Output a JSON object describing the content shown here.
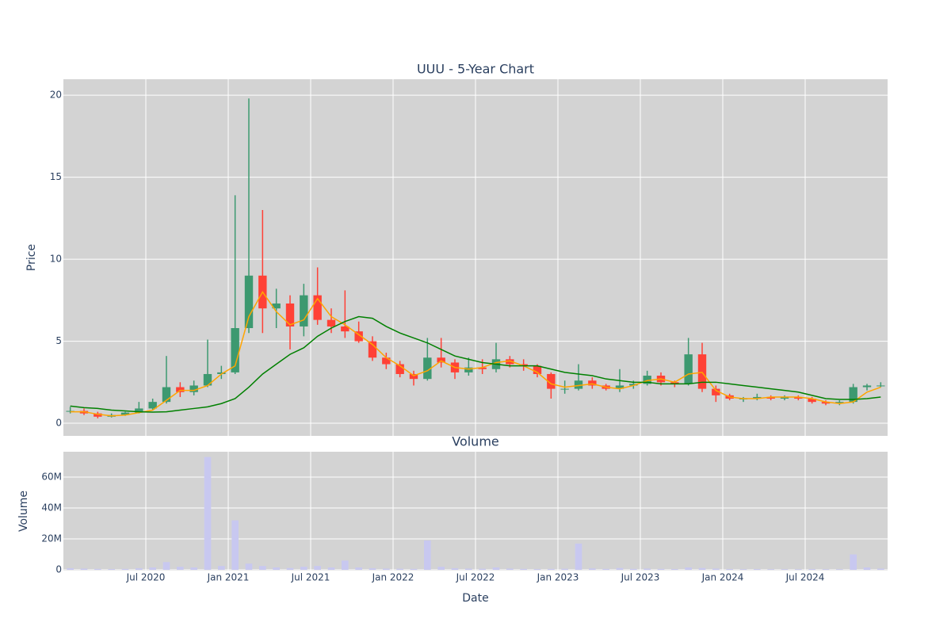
{
  "chart_data": [
    {
      "type": "candlestick",
      "title": "UUU - 5-Year Chart",
      "ylabel": "Price",
      "x": [
        "2020-01",
        "2020-02",
        "2020-03",
        "2020-04",
        "2020-05",
        "2020-06",
        "2020-07",
        "2020-08",
        "2020-09",
        "2020-10",
        "2020-11",
        "2020-12",
        "2021-01",
        "2021-02",
        "2021-03",
        "2021-04",
        "2021-05",
        "2021-06",
        "2021-07",
        "2021-08",
        "2021-09",
        "2021-10",
        "2021-11",
        "2021-12",
        "2022-01",
        "2022-02",
        "2022-03",
        "2022-04",
        "2022-05",
        "2022-06",
        "2022-07",
        "2022-08",
        "2022-09",
        "2022-10",
        "2022-11",
        "2022-12",
        "2023-01",
        "2023-02",
        "2023-03",
        "2023-04",
        "2023-05",
        "2023-06",
        "2023-07",
        "2023-08",
        "2023-09",
        "2023-10",
        "2023-11",
        "2023-12",
        "2024-01",
        "2024-02",
        "2024-03",
        "2024-04",
        "2024-05",
        "2024-06",
        "2024-07",
        "2024-08",
        "2024-09",
        "2024-10",
        "2024-11",
        "2024-12"
      ],
      "open": [
        0.7,
        0.75,
        0.6,
        0.4,
        0.5,
        0.65,
        0.9,
        1.3,
        2.2,
        1.9,
        2.3,
        3.0,
        3.1,
        5.8,
        9.0,
        7.0,
        7.3,
        5.9,
        7.8,
        6.3,
        5.9,
        5.6,
        5.0,
        4.0,
        3.6,
        3.0,
        2.7,
        4.0,
        3.7,
        3.1,
        3.4,
        3.3,
        3.9,
        3.6,
        3.5,
        3.0,
        2.1,
        2.1,
        2.6,
        2.3,
        2.1,
        2.3,
        2.4,
        2.9,
        2.5,
        2.4,
        4.2,
        2.1,
        1.7,
        1.5,
        1.5,
        1.6,
        1.5,
        1.6,
        1.5,
        1.3,
        1.2,
        1.3,
        2.2,
        2.3
      ],
      "high": [
        1.0,
        0.9,
        0.7,
        0.6,
        0.7,
        1.3,
        1.5,
        4.1,
        2.5,
        2.6,
        5.1,
        3.5,
        13.9,
        19.8,
        13.0,
        8.2,
        7.8,
        8.5,
        9.5,
        7.0,
        8.1,
        6.2,
        5.3,
        4.3,
        3.8,
        3.2,
        5.2,
        5.2,
        3.9,
        4.0,
        3.9,
        4.9,
        4.1,
        3.9,
        3.6,
        3.1,
        2.6,
        3.6,
        2.8,
        2.4,
        3.3,
        2.6,
        3.2,
        3.1,
        2.6,
        5.2,
        4.9,
        2.3,
        1.8,
        1.6,
        1.8,
        1.7,
        1.7,
        1.7,
        1.6,
        1.4,
        1.4,
        2.4,
        2.4,
        2.5
      ],
      "low": [
        0.6,
        0.5,
        0.3,
        0.35,
        0.45,
        0.6,
        0.8,
        1.2,
        1.6,
        1.7,
        2.2,
        2.7,
        3.0,
        5.5,
        5.5,
        5.8,
        4.5,
        5.3,
        6.0,
        5.5,
        5.2,
        4.9,
        3.8,
        3.3,
        2.8,
        2.3,
        2.6,
        3.4,
        2.7,
        2.9,
        3.0,
        3.1,
        3.4,
        3.2,
        2.8,
        1.5,
        1.8,
        2.0,
        2.1,
        2.0,
        1.9,
        2.1,
        2.3,
        2.3,
        2.2,
        2.3,
        1.9,
        1.3,
        1.4,
        1.3,
        1.4,
        1.4,
        1.4,
        1.4,
        1.2,
        1.1,
        1.1,
        1.2,
        2.0,
        2.2
      ],
      "close": [
        0.75,
        0.6,
        0.4,
        0.5,
        0.65,
        0.9,
        1.3,
        2.2,
        1.9,
        2.3,
        3.0,
        3.1,
        5.8,
        9.0,
        7.0,
        7.3,
        5.9,
        7.8,
        6.3,
        5.9,
        5.6,
        5.0,
        4.0,
        3.6,
        3.0,
        2.7,
        4.0,
        3.7,
        3.1,
        3.4,
        3.3,
        3.9,
        3.6,
        3.5,
        3.0,
        2.1,
        2.1,
        2.6,
        2.3,
        2.1,
        2.3,
        2.4,
        2.9,
        2.5,
        2.4,
        4.2,
        2.1,
        1.7,
        1.5,
        1.5,
        1.6,
        1.5,
        1.6,
        1.5,
        1.3,
        1.2,
        1.3,
        2.2,
        2.3,
        2.3
      ],
      "increasing_color": "#3d9970",
      "decreasing_color": "#ff4136",
      "overlays": [
        {
          "color": "orange",
          "values": [
            0.7,
            0.7,
            0.55,
            0.45,
            0.5,
            0.65,
            0.8,
            1.4,
            2.0,
            2.0,
            2.3,
            3.0,
            3.5,
            6.5,
            8.0,
            6.8,
            6.0,
            6.3,
            7.6,
            6.5,
            6.0,
            5.4,
            4.8,
            4.0,
            3.5,
            2.9,
            3.2,
            3.8,
            3.4,
            3.3,
            3.4,
            3.7,
            3.8,
            3.5,
            3.1,
            2.4,
            2.2,
            2.3,
            2.4,
            2.2,
            2.1,
            2.3,
            2.6,
            2.7,
            2.5,
            3.0,
            3.1,
            2.0,
            1.6,
            1.5,
            1.5,
            1.6,
            1.6,
            1.6,
            1.5,
            1.3,
            1.2,
            1.3,
            1.9,
            2.2
          ]
        },
        {
          "color": "green",
          "values": [
            1.05,
            0.95,
            0.9,
            0.8,
            0.75,
            0.7,
            0.68,
            0.7,
            0.8,
            0.9,
            1.0,
            1.2,
            1.5,
            2.2,
            3.0,
            3.6,
            4.2,
            4.6,
            5.3,
            5.8,
            6.2,
            6.5,
            6.4,
            5.9,
            5.5,
            5.2,
            4.9,
            4.5,
            4.1,
            3.9,
            3.7,
            3.6,
            3.5,
            3.5,
            3.5,
            3.3,
            3.1,
            3.0,
            2.9,
            2.7,
            2.6,
            2.5,
            2.5,
            2.4,
            2.4,
            2.4,
            2.5,
            2.5,
            2.4,
            2.3,
            2.2,
            2.1,
            2.0,
            1.9,
            1.7,
            1.5,
            1.45,
            1.45,
            1.5,
            1.6
          ]
        }
      ],
      "xlim": [
        "2020-01",
        "2025-01"
      ],
      "ylim": [
        -0.77,
        20.97
      ],
      "yticks": [
        0,
        5,
        10,
        15,
        20
      ],
      "grid": true
    },
    {
      "type": "bar",
      "title": "Volume",
      "ylabel": "Volume",
      "xlabel": "Date",
      "x": [
        "2020-01",
        "2020-02",
        "2020-03",
        "2020-04",
        "2020-05",
        "2020-06",
        "2020-07",
        "2020-08",
        "2020-09",
        "2020-10",
        "2020-11",
        "2020-12",
        "2021-01",
        "2021-02",
        "2021-03",
        "2021-04",
        "2021-05",
        "2021-06",
        "2021-07",
        "2021-08",
        "2021-09",
        "2021-10",
        "2021-11",
        "2021-12",
        "2022-01",
        "2022-02",
        "2022-03",
        "2022-04",
        "2022-05",
        "2022-06",
        "2022-07",
        "2022-08",
        "2022-09",
        "2022-10",
        "2022-11",
        "2022-12",
        "2023-01",
        "2023-02",
        "2023-03",
        "2023-04",
        "2023-05",
        "2023-06",
        "2023-07",
        "2023-08",
        "2023-09",
        "2023-10",
        "2023-11",
        "2023-12",
        "2024-01",
        "2024-02",
        "2024-03",
        "2024-04",
        "2024-05",
        "2024-06",
        "2024-07",
        "2024-08",
        "2024-09",
        "2024-10",
        "2024-11",
        "2024-12"
      ],
      "values": [
        1000000,
        800000,
        600000,
        500000,
        600000,
        1000000,
        1500000,
        5000000,
        2000000,
        1500000,
        73000000,
        2500000,
        32000000,
        4000000,
        2500000,
        1500000,
        1200000,
        2000000,
        2500000,
        1500000,
        6000000,
        1500000,
        1000000,
        800000,
        700000,
        600000,
        19000000,
        2000000,
        1000000,
        800000,
        700000,
        1500000,
        800000,
        600000,
        500000,
        600000,
        700000,
        17000000,
        900000,
        600000,
        1200000,
        600000,
        800000,
        600000,
        500000,
        1500000,
        1200000,
        800000,
        500000,
        400000,
        500000,
        400000,
        400000,
        400000,
        500000,
        400000,
        400000,
        10000000,
        1500000,
        800000
      ],
      "color": "#c8c8f0",
      "xlim": [
        "2020-01",
        "2025-01"
      ],
      "ylim": [
        -500000,
        76400000
      ],
      "yticks": [
        0,
        {
          "value": 20000000,
          "label": "20M"
        },
        {
          "value": 40000000,
          "label": "40M"
        },
        {
          "value": 60000000,
          "label": "60M"
        }
      ],
      "xticks": [
        {
          "value": "2020-07",
          "label": "Jul 2020"
        },
        {
          "value": "2021-01",
          "label": "Jan 2021"
        },
        {
          "value": "2021-07",
          "label": "Jul 2021"
        },
        {
          "value": "2022-01",
          "label": "Jan 2022"
        },
        {
          "value": "2022-07",
          "label": "Jul 2022"
        },
        {
          "value": "2023-01",
          "label": "Jan 2023"
        },
        {
          "value": "2023-07",
          "label": "Jul 2023"
        },
        {
          "value": "2024-01",
          "label": "Jan 2024"
        },
        {
          "value": "2024-07",
          "label": "Jul 2024"
        }
      ],
      "grid": true
    }
  ]
}
